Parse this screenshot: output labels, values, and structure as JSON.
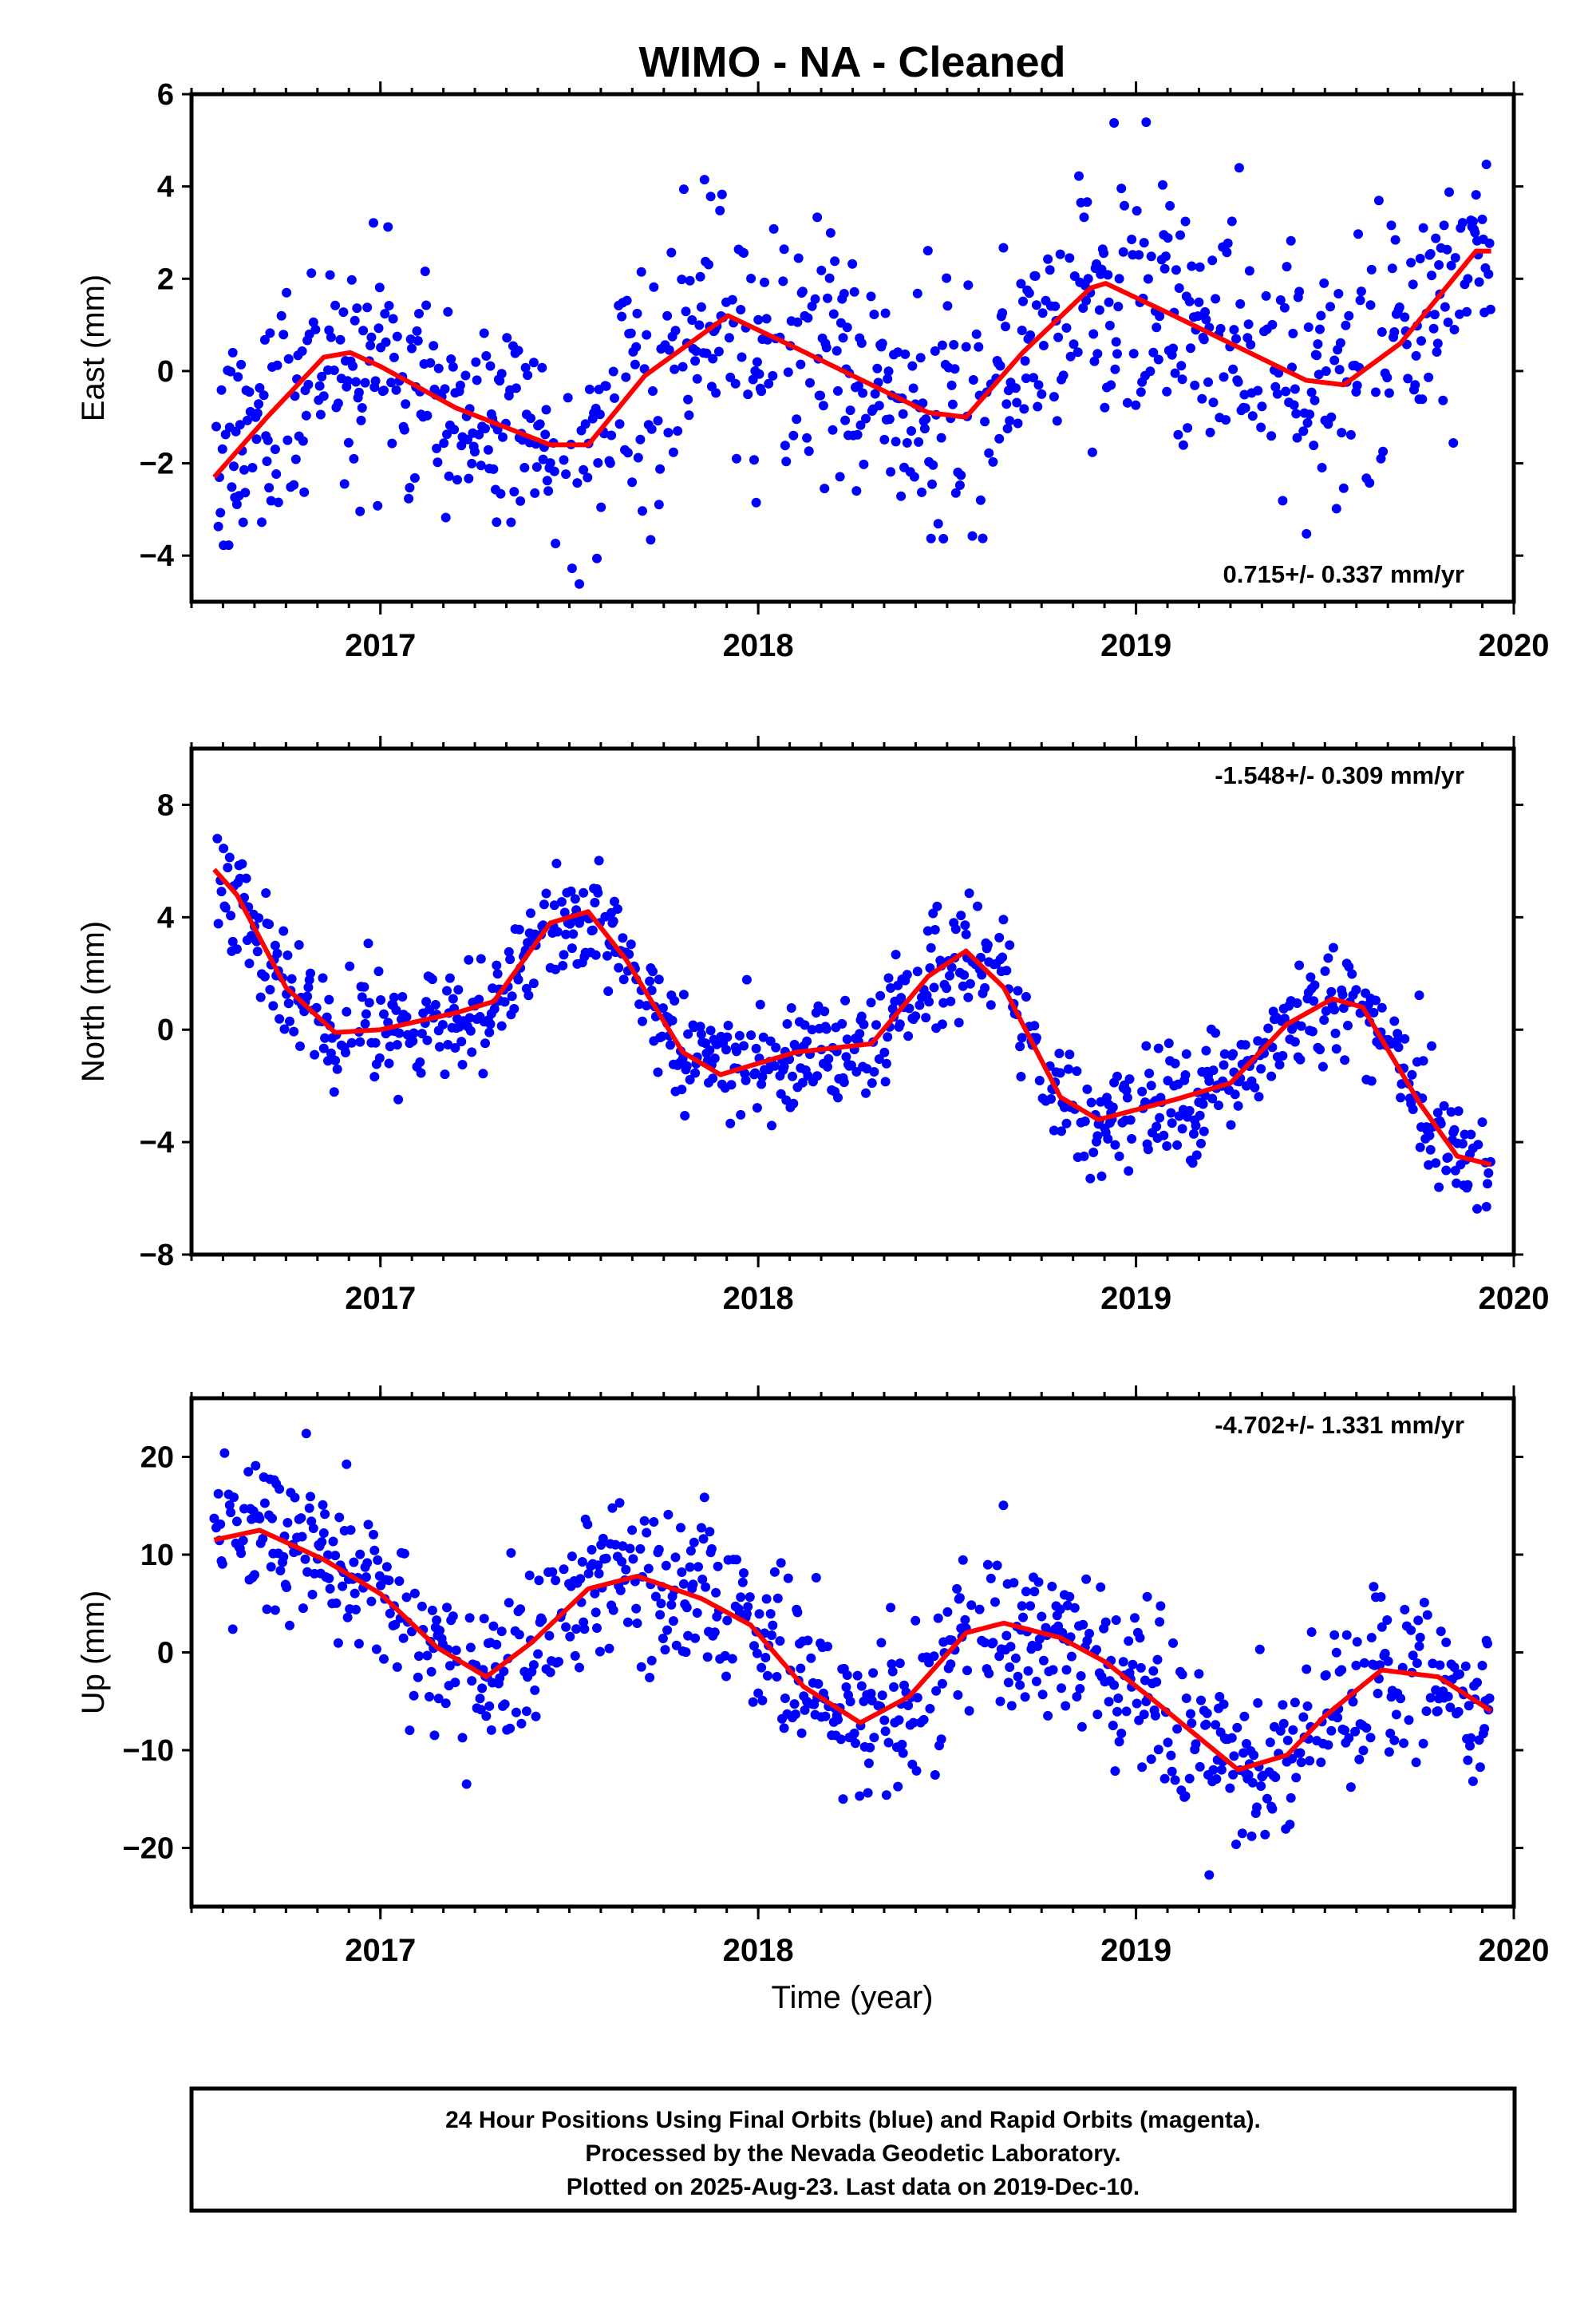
{
  "title": "WIMO  - NA - Cleaned",
  "xlabel": "Time (year)",
  "footer": {
    "lines": [
      "24 Hour Positions Using Final Orbits (blue) and Rapid Orbits (magenta).",
      "Processed by the Nevada Geodetic Laboratory.",
      "Plotted on 2025-Aug-23. Last data on 2019-Dec-10."
    ]
  },
  "colors": {
    "final_orbits": "#0000ff",
    "rapid_orbits": "#ff00ff",
    "model_fit": "#ff0000",
    "frame": "#000000"
  },
  "chart_data": [
    {
      "type": "scatter",
      "component": "East",
      "ylabel": "East (mm)",
      "rate": "0.715+/- 0.337 mm/yr",
      "rate_position": "bottom-right",
      "xlim": [
        2016.5,
        2020.0
      ],
      "ylim": [
        -5.0,
        6.0
      ],
      "xticks": [
        2017,
        2018,
        2019,
        2020
      ],
      "yticks": [
        -4,
        -2,
        0,
        2,
        4,
        6
      ],
      "grid": false,
      "first_epoch": 2016.56,
      "last_epoch": 2019.94,
      "series": [
        {
          "name": "Final Orbits (blue)",
          "kind": "points",
          "color": "#0000ff",
          "scatter_mm": 1.3
        },
        {
          "name": "Model fit",
          "kind": "line",
          "color": "#ff0000",
          "x": [
            2016.56,
            2016.7,
            2016.85,
            2016.92,
            2017.0,
            2017.2,
            2017.45,
            2017.55,
            2017.7,
            2017.92,
            2018.1,
            2018.3,
            2018.45,
            2018.55,
            2018.7,
            2018.88,
            2018.92,
            2019.1,
            2019.3,
            2019.45,
            2019.55,
            2019.7,
            2019.9,
            2019.94
          ],
          "y": [
            -2.3,
            -1.0,
            0.3,
            0.4,
            0.1,
            -0.8,
            -1.6,
            -1.6,
            -0.1,
            1.2,
            0.5,
            -0.3,
            -0.9,
            -1.0,
            0.4,
            1.8,
            1.9,
            1.2,
            0.4,
            -0.2,
            -0.3,
            0.6,
            2.6,
            2.6
          ]
        }
      ]
    },
    {
      "type": "scatter",
      "component": "North",
      "ylabel": "North (mm)",
      "rate": "-1.548+/- 0.309 mm/yr",
      "rate_position": "top-right",
      "xlim": [
        2016.5,
        2020.0
      ],
      "ylim": [
        -8.0,
        10.0
      ],
      "xticks": [
        2017,
        2018,
        2019,
        2020
      ],
      "yticks": [
        -8,
        -4,
        0,
        4,
        8
      ],
      "grid": false,
      "first_epoch": 2016.56,
      "last_epoch": 2019.94,
      "series": [
        {
          "name": "Final Orbits (blue)",
          "kind": "points",
          "color": "#0000ff",
          "scatter_mm": 1.0
        },
        {
          "name": "Model fit",
          "kind": "line",
          "color": "#ff0000",
          "x": [
            2016.56,
            2016.62,
            2016.75,
            2016.88,
            2017.0,
            2017.2,
            2017.3,
            2017.45,
            2017.55,
            2017.65,
            2017.8,
            2017.9,
            2018.1,
            2018.3,
            2018.45,
            2018.55,
            2018.65,
            2018.8,
            2018.9,
            2019.1,
            2019.25,
            2019.4,
            2019.52,
            2019.6,
            2019.75,
            2019.85,
            2019.94
          ],
          "y": [
            5.7,
            4.8,
            1.5,
            -0.1,
            0.0,
            0.6,
            1.0,
            3.8,
            4.2,
            2.5,
            -0.8,
            -1.6,
            -0.8,
            -0.5,
            1.9,
            2.8,
            1.5,
            -2.4,
            -3.2,
            -2.5,
            -1.9,
            0.2,
            1.1,
            0.8,
            -2.6,
            -4.5,
            -4.8
          ]
        }
      ]
    },
    {
      "type": "scatter",
      "component": "Up",
      "ylabel": "Up (mm)",
      "rate": "-4.702+/- 1.331 mm/yr",
      "rate_position": "top-right",
      "xlim": [
        2016.5,
        2020.0
      ],
      "ylim": [
        -26.0,
        26.0
      ],
      "xticks": [
        2017,
        2018,
        2019,
        2020
      ],
      "yticks": [
        -20,
        -10,
        0,
        10,
        20
      ],
      "grid": false,
      "first_epoch": 2016.56,
      "last_epoch": 2019.94,
      "series": [
        {
          "name": "Final Orbits (blue)",
          "kind": "points",
          "color": "#0000ff",
          "scatter_mm": 4.2
        },
        {
          "name": "Model fit",
          "kind": "line",
          "color": "#ff0000",
          "x": [
            2016.56,
            2016.68,
            2016.85,
            2017.0,
            2017.15,
            2017.28,
            2017.4,
            2017.55,
            2017.68,
            2017.85,
            2017.98,
            2018.12,
            2018.27,
            2018.4,
            2018.55,
            2018.65,
            2018.8,
            2018.92,
            2019.05,
            2019.27,
            2019.4,
            2019.5,
            2019.65,
            2019.8,
            2019.94
          ],
          "y": [
            11.5,
            12.5,
            9.5,
            6.0,
            0.5,
            -2.5,
            1.0,
            6.5,
            7.8,
            5.5,
            2.8,
            -3.5,
            -7.2,
            -4.5,
            2.0,
            3.0,
            1.5,
            -1.0,
            -5.0,
            -12.0,
            -10.5,
            -6.5,
            -1.8,
            -2.5,
            -6.0
          ]
        }
      ]
    }
  ]
}
